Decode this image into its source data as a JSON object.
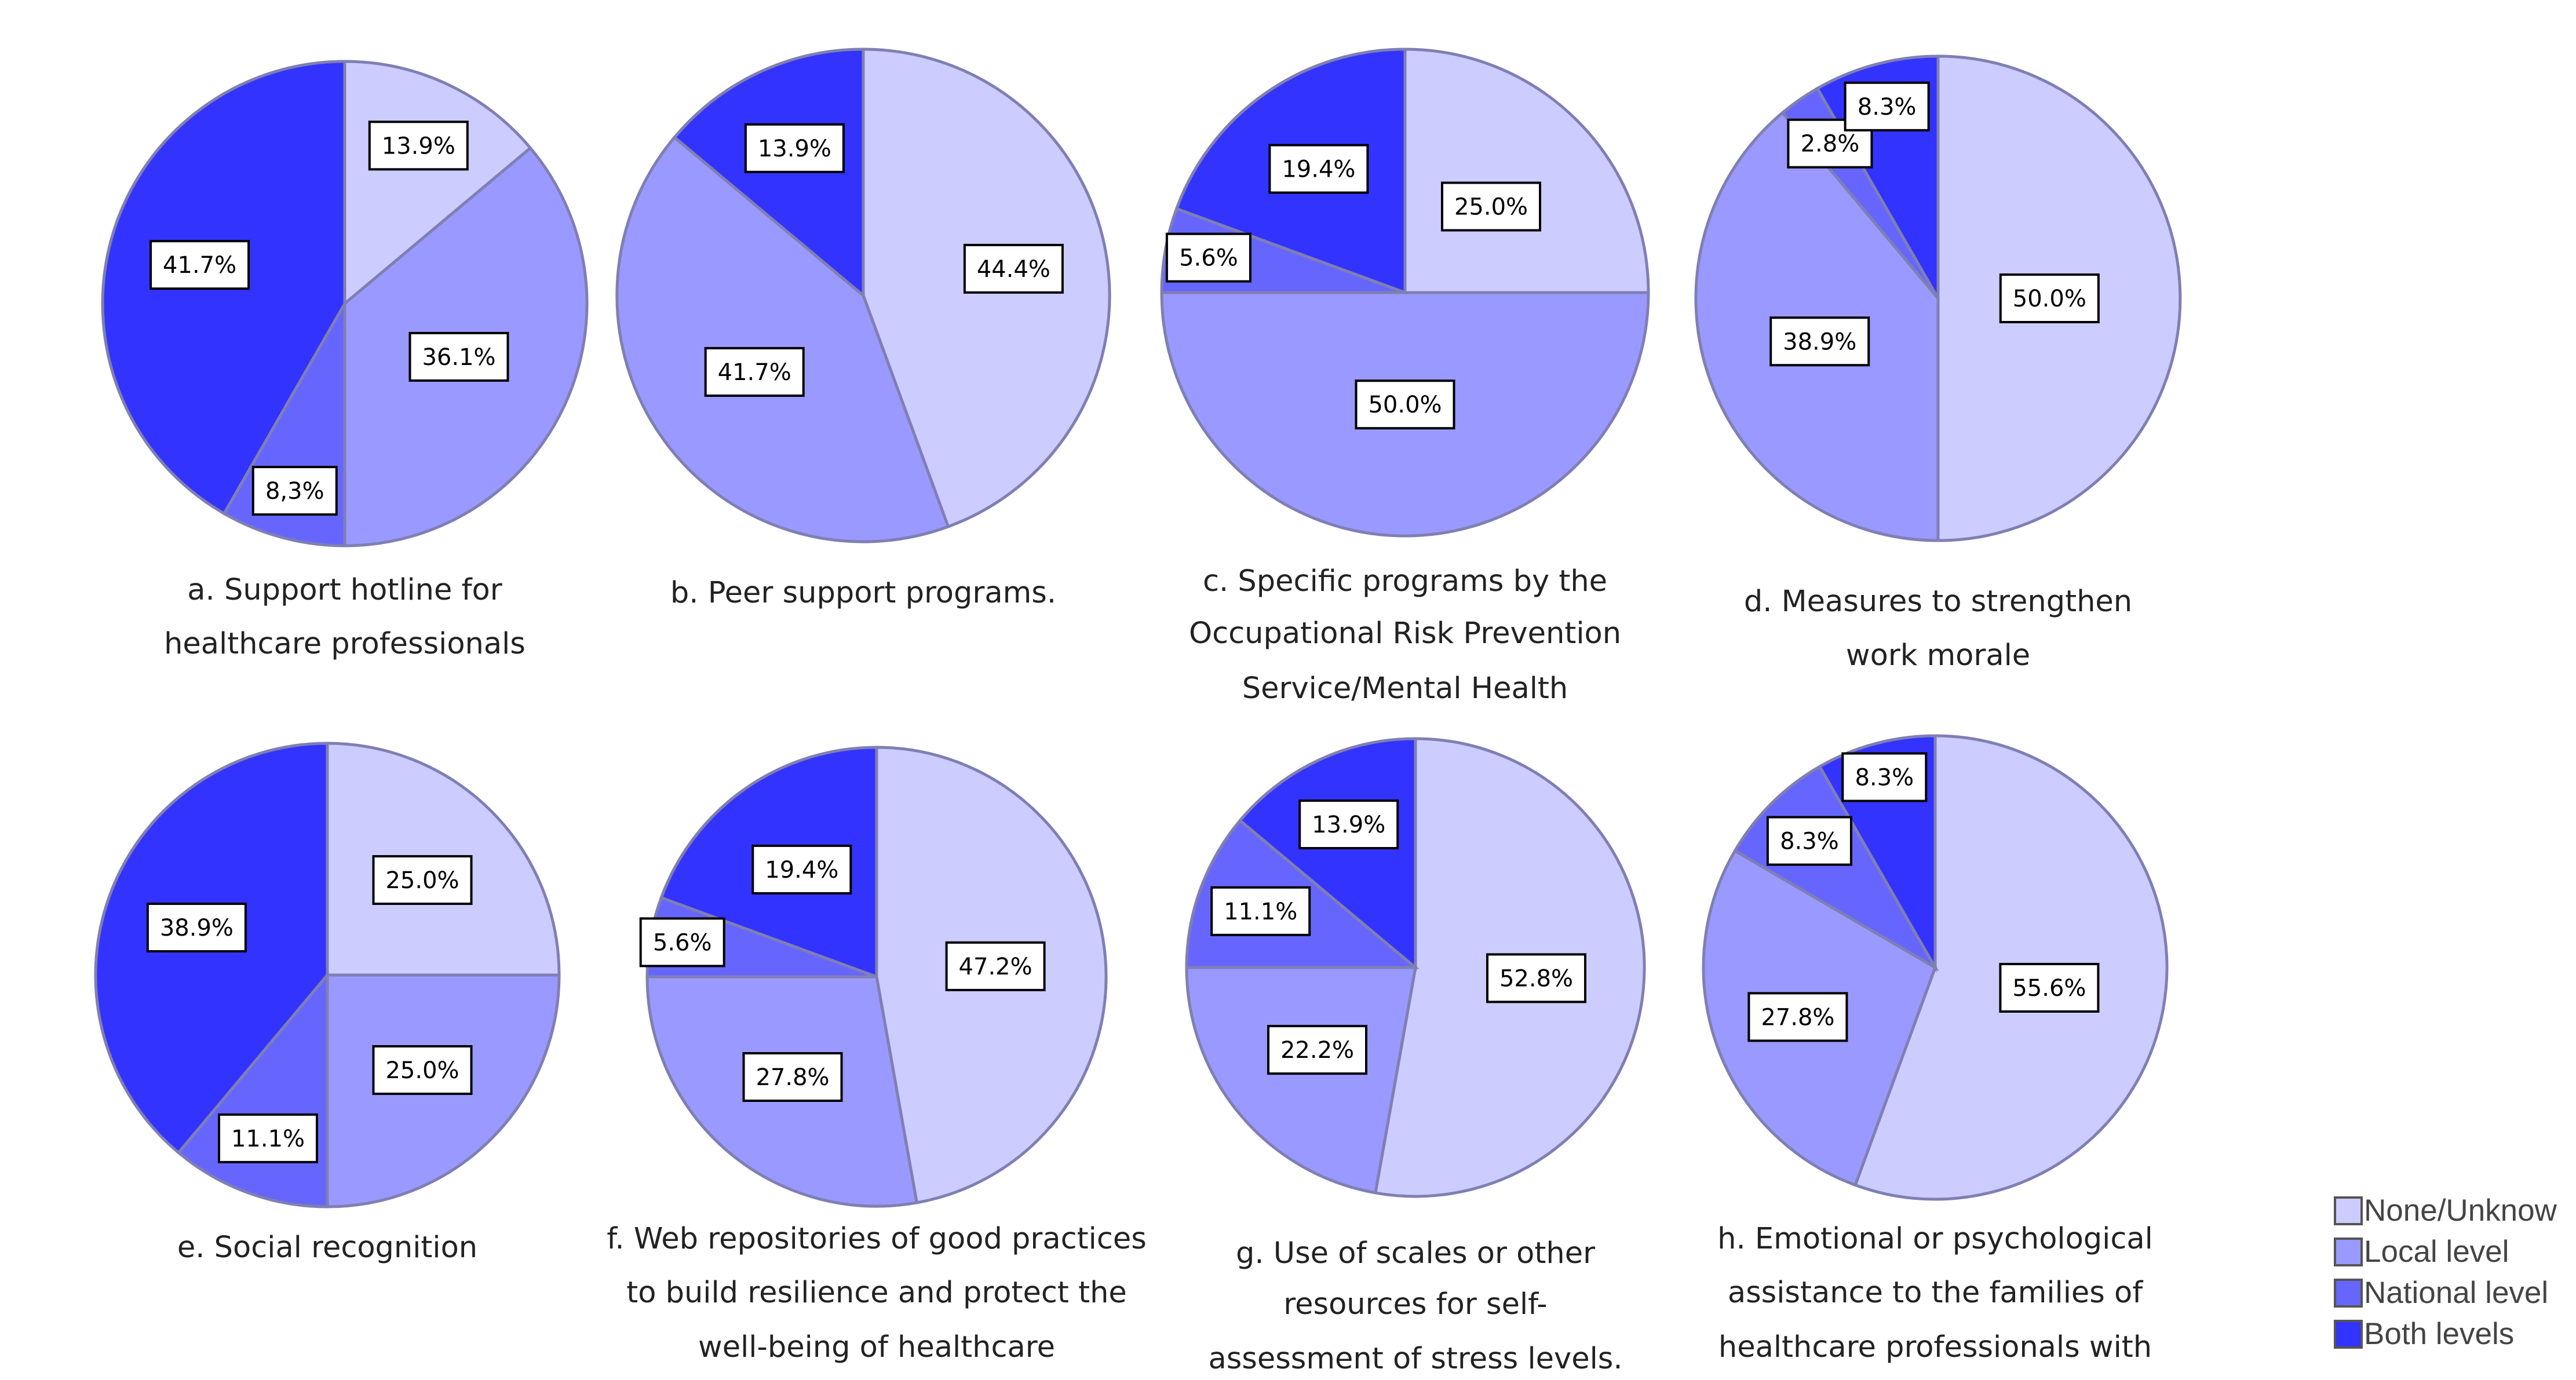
{
  "chart_data": [
    {
      "type": "pie",
      "title": "a. Support hotline for healthcare professionals",
      "caption_lines": [
        "a. Support hotline for",
        "healthcare professionals"
      ],
      "values": [
        13.9,
        36.1,
        8.3,
        41.7
      ],
      "labels": [
        "13.9%",
        "36.1%",
        "8,3%",
        "41.7%"
      ]
    },
    {
      "type": "pie",
      "title": "b. Peer support programs.",
      "caption_lines": [
        "b. Peer support programs."
      ],
      "values": [
        44.4,
        41.7,
        0,
        13.9
      ],
      "labels": [
        "44.4%",
        "41.7%",
        "",
        "13.9%"
      ]
    },
    {
      "type": "pie",
      "title": "c. Specific programs by the Occupational Risk Prevention Service/Mental Health",
      "caption_lines": [
        "c. Specific programs by the",
        "Occupational Risk Prevention",
        "Service/Mental Health"
      ],
      "values": [
        25.0,
        50.0,
        5.6,
        19.4
      ],
      "labels": [
        "25.0%",
        "50.0%",
        "5.6%",
        "19.4%"
      ]
    },
    {
      "type": "pie",
      "title": "d. Measures to strengthen work morale",
      "caption_lines": [
        "d. Measures to strengthen",
        "work morale"
      ],
      "values": [
        50.0,
        38.9,
        2.8,
        8.3
      ],
      "labels": [
        "50.0%",
        "38.9%",
        "2.8%",
        "8.3%"
      ]
    },
    {
      "type": "pie",
      "title": "e. Social recognition",
      "caption_lines": [
        "e. Social recognition"
      ],
      "values": [
        25.0,
        25.0,
        11.1,
        38.9
      ],
      "labels": [
        "25.0%",
        "25.0%",
        "11.1%",
        "38.9%"
      ]
    },
    {
      "type": "pie",
      "title": "f. Web repositories of good practices to build resilience and protect the well-being of healthcare",
      "caption_lines": [
        "f. Web repositories of good practices",
        "to build resilience and protect the",
        "well-being of healthcare"
      ],
      "values": [
        47.2,
        27.8,
        5.6,
        19.4
      ],
      "labels": [
        "47.2%",
        "27.8%",
        "5.6%",
        "19.4%"
      ]
    },
    {
      "type": "pie",
      "title": "g. Use of scales or other resources for self-assessment of stress levels.",
      "caption_lines": [
        "g. Use of scales or other",
        "resources for self-",
        "assessment of stress levels."
      ],
      "values": [
        52.8,
        22.2,
        11.1,
        13.9
      ],
      "labels": [
        "52.8%",
        "22.2%",
        "11.1%",
        "13.9%"
      ]
    },
    {
      "type": "pie",
      "title": "h. Emotional or psychological assistance to the families of healthcare professionals with",
      "caption_lines": [
        "h. Emotional  or psychological",
        "assistance to the families of",
        "healthcare professionals with"
      ],
      "values": [
        55.6,
        27.8,
        8.3,
        8.3
      ],
      "labels": [
        "55.6%",
        "27.8%",
        "8.3%",
        "8.3%"
      ]
    }
  ],
  "legend": {
    "entries": [
      "None/Unknow",
      "Local level",
      "National level",
      "Both levels"
    ],
    "colors": [
      "#ccccff",
      "#9999ff",
      "#6666ff",
      "#3333ff"
    ]
  },
  "stroke_color": "#7f7fb3"
}
